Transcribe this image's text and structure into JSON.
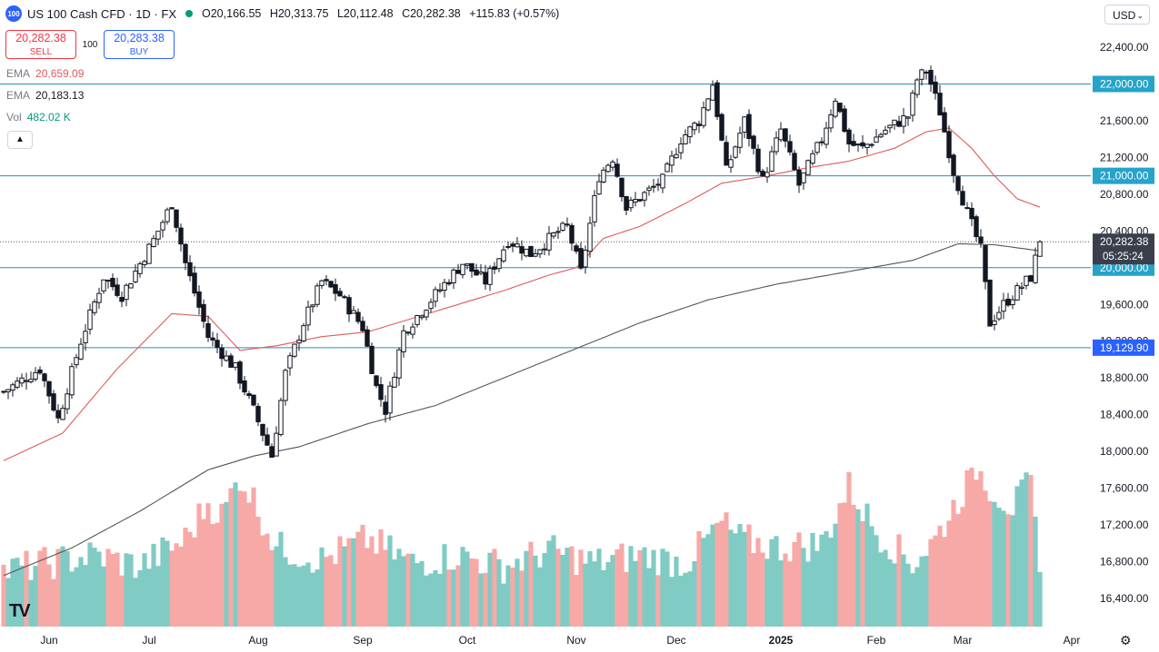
{
  "header": {
    "logo_text": "100",
    "symbol": "US 100 Cash CFD · 1D · FX",
    "ohlc": [
      {
        "k": "O",
        "v": "20,166.55"
      },
      {
        "k": "H",
        "v": "20,313.75"
      },
      {
        "k": "L",
        "v": "20,112.48"
      },
      {
        "k": "C",
        "v": "20,282.38"
      }
    ],
    "change": "+115.83 (+0.57%)",
    "status_color": "#089981"
  },
  "trade": {
    "sell_price": "20,282.38",
    "sell_label": "SELL",
    "qty": "100",
    "buy_price": "20,283.38",
    "buy_label": "BUY"
  },
  "indicators": [
    {
      "name": "EMA",
      "value": "20,659.09",
      "color": "#e05a5a"
    },
    {
      "name": "EMA",
      "value": "20,183.13",
      "color": "#131722"
    },
    {
      "name": "Vol",
      "value": "482.02 K",
      "color": "#089981"
    }
  ],
  "currency": "USD",
  "collapse_icon": "chevron-up-icon",
  "settings_icon": "gear-icon",
  "chart_data": {
    "type": "line",
    "instrument": "US 100 Cash CFD",
    "timeframe": "1D",
    "ylim": [
      16400,
      22600
    ],
    "yticks": [
      22400,
      22000,
      21600,
      21200,
      20800,
      20400,
      20000,
      19600,
      19200,
      18800,
      18400,
      18000,
      17600,
      17200,
      16800,
      16400
    ],
    "ytick_labels": [
      "22,400.00",
      "22,000.00",
      "21,600.00",
      "21,200.00",
      "20,800.00",
      "20,400.00",
      "20,000.00",
      "19,600.00",
      "19,200.00",
      "18,800.00",
      "18,400.00",
      "18,000.00",
      "17,600.00",
      "17,200.00",
      "16,800.00",
      "16,400.00"
    ],
    "x_labels": [
      "Jun",
      "Jul",
      "Aug",
      "Sep",
      "Oct",
      "Nov",
      "Dec",
      "2025",
      "Feb",
      "Mar",
      "Apr"
    ],
    "x_label_day_index": [
      10,
      32,
      56,
      79,
      102,
      126,
      148,
      171,
      192,
      211,
      235
    ],
    "horizontal_levels": [
      {
        "value": 22000,
        "label": "22,000.00"
      },
      {
        "value": 21000,
        "label": "21,000.00"
      },
      {
        "value": 20000,
        "label": "20,000.00"
      },
      {
        "value": 19129.9,
        "label": "19,129.90"
      }
    ],
    "current_price": {
      "value": 20282.38,
      "label": "20,282.38",
      "countdown": "05:25:24"
    },
    "series": [
      {
        "name": "Price",
        "kind": "candlestick",
        "up_color": "#131722",
        "down_color": "#131722",
        "anchors": [
          [
            0,
            18650
          ],
          [
            8,
            18900
          ],
          [
            12,
            18350
          ],
          [
            17,
            19200
          ],
          [
            22,
            19900
          ],
          [
            26,
            19700
          ],
          [
            33,
            20300
          ],
          [
            37,
            20700
          ],
          [
            40,
            20050
          ],
          [
            45,
            19250
          ],
          [
            51,
            18900
          ],
          [
            55,
            18450
          ],
          [
            59,
            17950
          ],
          [
            62,
            18850
          ],
          [
            66,
            19400
          ],
          [
            70,
            19850
          ],
          [
            74,
            19700
          ],
          [
            79,
            19350
          ],
          [
            82,
            18700
          ],
          [
            84,
            18450
          ],
          [
            88,
            19300
          ],
          [
            94,
            19650
          ],
          [
            101,
            20050
          ],
          [
            106,
            19850
          ],
          [
            111,
            20300
          ],
          [
            116,
            20150
          ],
          [
            121,
            20350
          ],
          [
            124,
            20450
          ],
          [
            127,
            19950
          ],
          [
            131,
            21000
          ],
          [
            134,
            21200
          ],
          [
            137,
            20650
          ],
          [
            141,
            20800
          ],
          [
            145,
            20950
          ],
          [
            149,
            21400
          ],
          [
            153,
            21600
          ],
          [
            156,
            22000
          ],
          [
            159,
            21050
          ],
          [
            163,
            21600
          ],
          [
            167,
            20950
          ],
          [
            171,
            21500
          ],
          [
            175,
            20900
          ],
          [
            180,
            21400
          ],
          [
            183,
            21850
          ],
          [
            186,
            21350
          ],
          [
            189,
            21300
          ],
          [
            194,
            21500
          ],
          [
            199,
            21650
          ],
          [
            201,
            22050
          ],
          [
            203,
            22150
          ],
          [
            206,
            21700
          ],
          [
            209,
            21050
          ],
          [
            212,
            20600
          ],
          [
            215,
            20200
          ],
          [
            217,
            19400
          ],
          [
            220,
            19600
          ],
          [
            223,
            19750
          ],
          [
            226,
            19900
          ],
          [
            228,
            20282.38
          ]
        ]
      },
      {
        "name": "EMA",
        "value_label": "20,659.09",
        "color": "#e05a5a",
        "points": [
          [
            0,
            17900
          ],
          [
            13,
            18200
          ],
          [
            25,
            18900
          ],
          [
            37,
            19500
          ],
          [
            45,
            19470
          ],
          [
            52,
            19100
          ],
          [
            60,
            19150
          ],
          [
            70,
            19250
          ],
          [
            80,
            19300
          ],
          [
            90,
            19450
          ],
          [
            100,
            19600
          ],
          [
            110,
            19750
          ],
          [
            120,
            19920
          ],
          [
            126,
            20000
          ],
          [
            132,
            20320
          ],
          [
            140,
            20450
          ],
          [
            150,
            20700
          ],
          [
            158,
            20920
          ],
          [
            168,
            21000
          ],
          [
            176,
            21080
          ],
          [
            186,
            21160
          ],
          [
            196,
            21300
          ],
          [
            203,
            21480
          ],
          [
            208,
            21520
          ],
          [
            213,
            21300
          ],
          [
            218,
            21000
          ],
          [
            223,
            20750
          ],
          [
            228,
            20659.09
          ]
        ]
      },
      {
        "name": "EMA",
        "value_label": "20,183.13",
        "color": "#555555",
        "points": [
          [
            0,
            16650
          ],
          [
            15,
            16950
          ],
          [
            30,
            17350
          ],
          [
            45,
            17800
          ],
          [
            55,
            17950
          ],
          [
            65,
            18050
          ],
          [
            80,
            18300
          ],
          [
            95,
            18500
          ],
          [
            110,
            18800
          ],
          [
            125,
            19100
          ],
          [
            140,
            19400
          ],
          [
            155,
            19650
          ],
          [
            170,
            19820
          ],
          [
            185,
            19950
          ],
          [
            200,
            20080
          ],
          [
            210,
            20260
          ],
          [
            218,
            20250
          ],
          [
            228,
            20183.13
          ]
        ]
      }
    ],
    "volume": {
      "name": "Vol",
      "last_label": "482.02 K",
      "up_color": "#80cbc4",
      "down_color": "#f7a9a7",
      "anchors": [
        [
          0,
          0.35
        ],
        [
          10,
          0.4
        ],
        [
          20,
          0.45
        ],
        [
          30,
          0.38
        ],
        [
          40,
          0.55
        ],
        [
          45,
          0.78
        ],
        [
          48,
          0.7
        ],
        [
          52,
          0.95
        ],
        [
          55,
          0.8
        ],
        [
          60,
          0.5
        ],
        [
          70,
          0.42
        ],
        [
          80,
          0.55
        ],
        [
          90,
          0.4
        ],
        [
          100,
          0.45
        ],
        [
          110,
          0.38
        ],
        [
          120,
          0.48
        ],
        [
          130,
          0.4
        ],
        [
          140,
          0.45
        ],
        [
          150,
          0.4
        ],
        [
          158,
          0.65
        ],
        [
          162,
          0.55
        ],
        [
          170,
          0.5
        ],
        [
          180,
          0.52
        ],
        [
          186,
          0.88
        ],
        [
          192,
          0.6
        ],
        [
          200,
          0.4
        ],
        [
          205,
          0.55
        ],
        [
          210,
          0.8
        ],
        [
          214,
          1.0
        ],
        [
          218,
          0.85
        ],
        [
          222,
          0.75
        ],
        [
          226,
          0.9
        ],
        [
          228,
          0.3
        ]
      ]
    }
  }
}
